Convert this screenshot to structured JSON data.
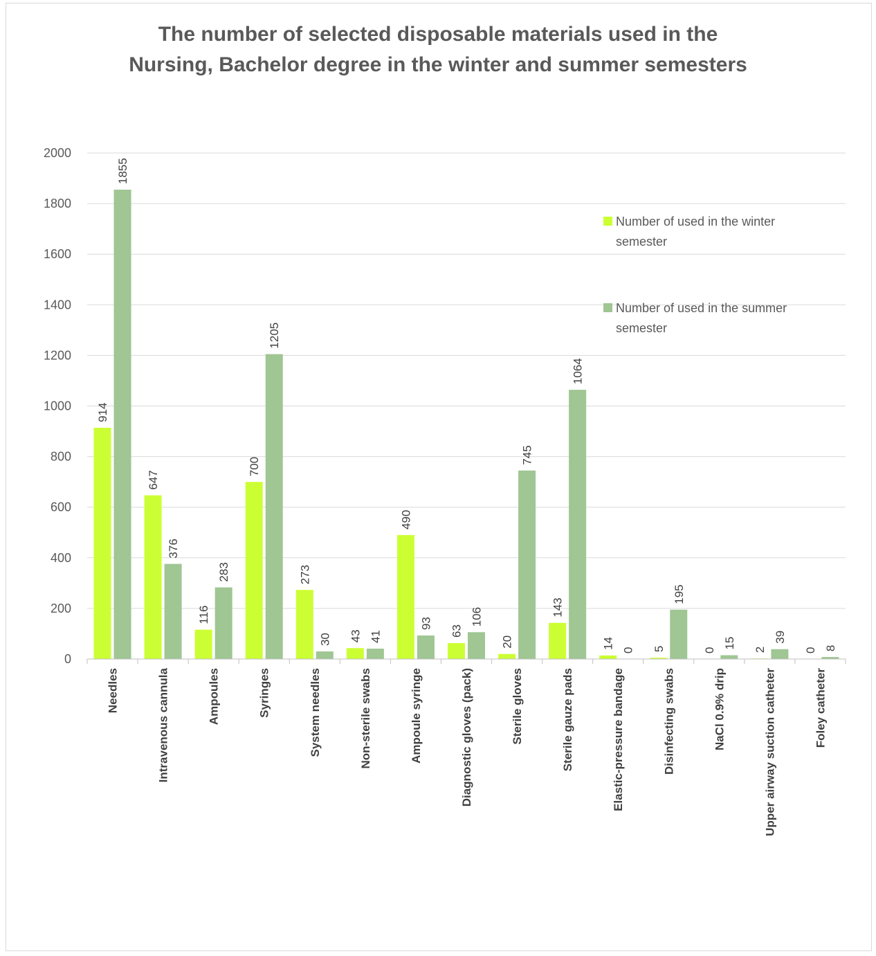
{
  "chart_data": {
    "type": "bar",
    "title_lines": [
      "The number of selected disposable materials used in the",
      "Nursing, Bachelor degree in the winter and summer semesters"
    ],
    "categories": [
      "Needles",
      "Intravenous cannula",
      "Ampoules",
      "Syringes",
      "System needles",
      "Non-sterile swabs",
      "Ampoule syringe",
      "Diagnostic gloves (pack)",
      "Sterile gloves",
      "Sterile gauze pads",
      "Elastic-pressure bandage",
      "Disinfecting swabs",
      "NaCl 0.9% drip",
      "Upper airway suction catheter",
      "Foley catheter"
    ],
    "series": [
      {
        "name": "Number of used in the winter semester",
        "legend_lines": [
          "Number of used in the winter",
          "semester"
        ],
        "color": "#ccff33",
        "values": [
          914,
          647,
          116,
          700,
          273,
          43,
          490,
          63,
          20,
          143,
          14,
          5,
          0,
          2,
          0
        ]
      },
      {
        "name": "Number of used in the summer semester",
        "legend_lines": [
          "Number of used in the summer",
          "semester"
        ],
        "color": "#9fc693",
        "values": [
          1855,
          376,
          283,
          1205,
          30,
          41,
          93,
          106,
          745,
          1064,
          0,
          195,
          15,
          39,
          8
        ]
      }
    ],
    "ylim": [
      0,
      2000
    ],
    "yticks": [
      0,
      200,
      400,
      600,
      800,
      1000,
      1200,
      1400,
      1600,
      1800,
      2000
    ],
    "grid": true,
    "legend_position": "top-right",
    "xlabel": "",
    "ylabel": ""
  }
}
